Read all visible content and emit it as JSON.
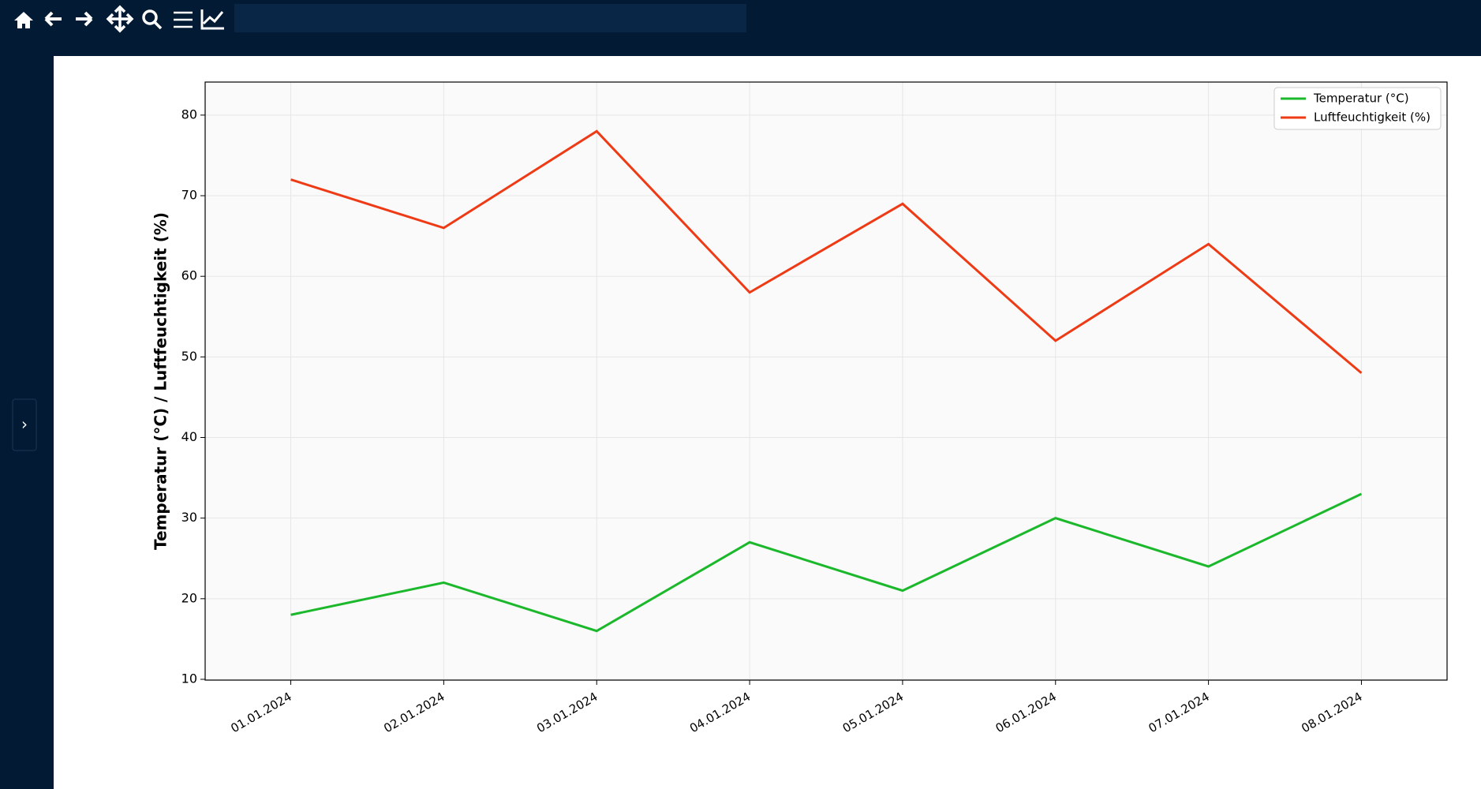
{
  "sidebar_toggle": "›",
  "chart_data": {
    "type": "line",
    "y_label": "Temperatur (°C) / Luftfeuchtigkeit (%)",
    "categories": [
      "01.01.2024",
      "02.01.2024",
      "03.01.2024",
      "04.01.2024",
      "05.01.2024",
      "06.01.2024",
      "07.01.2024",
      "08.01.2024"
    ],
    "series": [
      {
        "name": "Temperatur (°C)",
        "color": "#1cb82c",
        "values": [
          18,
          22,
          16,
          27,
          21,
          30,
          24,
          33
        ]
      },
      {
        "name": "Luftfeuchtigkeit (%)",
        "color": "#ee3b16",
        "values": [
          72,
          66,
          78,
          58,
          69,
          52,
          64,
          48
        ]
      }
    ],
    "ylim": [
      9.9,
      84.1
    ],
    "yticks": [
      10,
      20,
      30,
      40,
      50,
      60,
      70,
      80
    ],
    "grid": true,
    "legend": "upper-right"
  }
}
